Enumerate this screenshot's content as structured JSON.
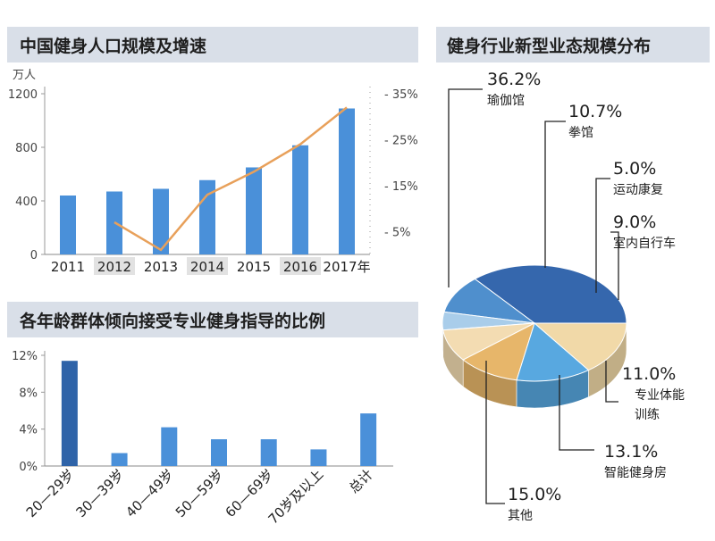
{
  "colors": {
    "bar": "#4a90d9",
    "bar_dark": "#2e63a8",
    "line": "#e8a05a",
    "title_bg": "#d9dfe8",
    "year_band": "#e2e2e2"
  },
  "chart_data": [
    {
      "type": "bar",
      "title": "中国健身人口规模及增速",
      "ylabel": "万人",
      "categories": [
        "2011",
        "2012",
        "2013",
        "2014",
        "2015",
        "2016",
        "2017年"
      ],
      "ylim": [
        0,
        1200
      ],
      "y_ticks": [
        "0",
        "400",
        "800",
        "1200"
      ],
      "y2_ticks": [
        "5%",
        "15%",
        "25%",
        "35%"
      ],
      "y2lim": [
        0,
        35
      ],
      "series": [
        {
          "values": [
            440,
            470,
            490,
            555,
            650,
            815,
            1090
          ]
        },
        {
          "values": [
            null,
            7,
            1,
            13,
            18,
            24,
            32
          ]
        }
      ]
    },
    {
      "type": "bar",
      "title": "各年龄群体倾向接受专业健身指导的比例",
      "categories": [
        "20—29岁",
        "30—39岁",
        "40—49岁",
        "50—59岁",
        "60—69岁",
        "70岁及以上",
        "总计"
      ],
      "ylim": [
        0,
        12
      ],
      "y_ticks": [
        "0%",
        "4%",
        "8%",
        "12%"
      ],
      "values": [
        11.4,
        1.4,
        4.2,
        2.9,
        2.9,
        1.8,
        5.7
      ]
    },
    {
      "type": "pie",
      "title": "健身行业新型业态规模分布",
      "slices": [
        {
          "label": "瑜伽馆",
          "value": "36.2%",
          "pct": 36.2,
          "color": "#3567ad"
        },
        {
          "label": "拳馆",
          "value": "10.7%",
          "pct": 10.7,
          "color": "#4f8fcd"
        },
        {
          "label": "运动康复",
          "value": "5.0%",
          "pct": 5.0,
          "color": "#a9cdea"
        },
        {
          "label": "室内自行车",
          "value": "9.0%",
          "pct": 9.0,
          "color": "#f3dcb2"
        },
        {
          "label": "专业体能训练",
          "value": "11.0%",
          "pct": 11.0,
          "color": "#e7b66a"
        },
        {
          "label": "智能健身房",
          "value": "13.1%",
          "pct": 13.1,
          "color": "#58a8e0"
        },
        {
          "label": "其他",
          "value": "15.0%",
          "pct": 15.0,
          "color": "#f1d9a8"
        }
      ]
    }
  ]
}
